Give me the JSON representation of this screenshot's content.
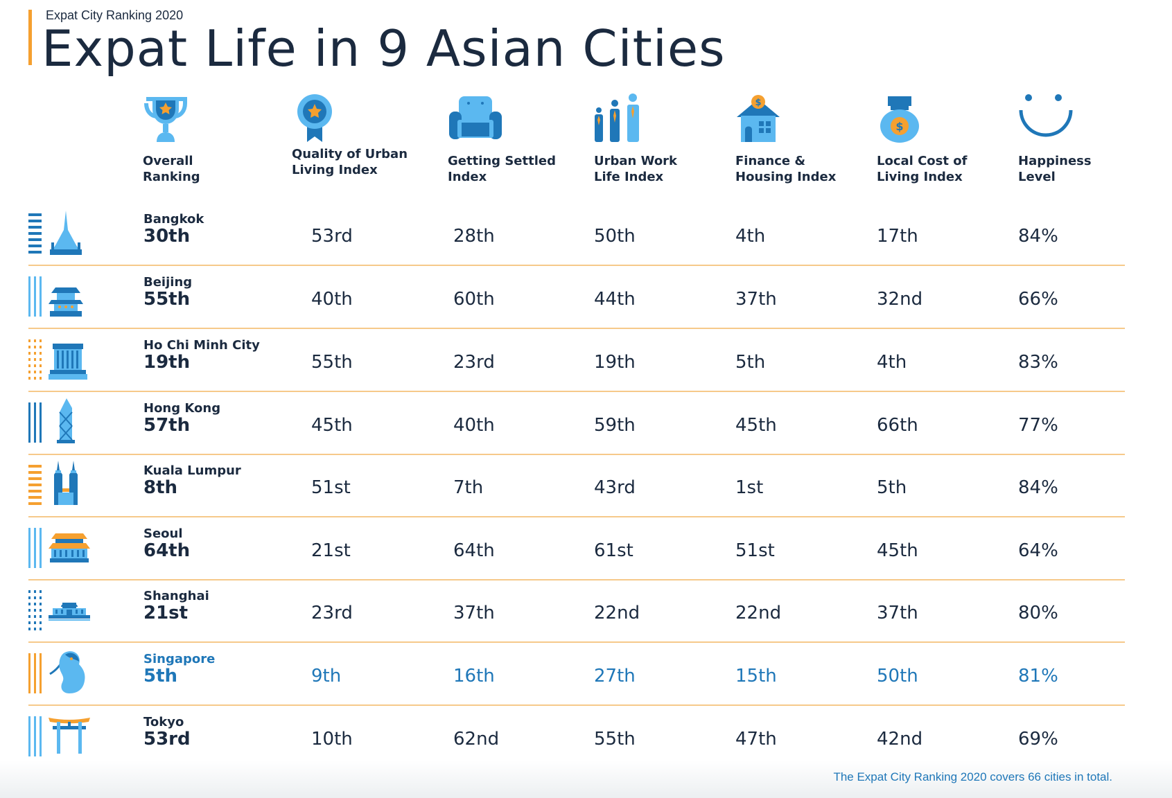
{
  "header": {
    "subtitle": "Expat City Ranking 2020",
    "title": "Expat Life in 9 Asian Cities"
  },
  "columns": [
    {
      "label": "Overall\nRanking",
      "icon": "trophy-icon"
    },
    {
      "label": "Quality of Urban\nLiving Index",
      "icon": "award-badge-icon"
    },
    {
      "label": "Getting Settled\nIndex",
      "icon": "armchair-icon"
    },
    {
      "label": "Urban Work\nLife Index",
      "icon": "people-icon"
    },
    {
      "label": "Finance &\nHousing Index",
      "icon": "house-dollar-icon"
    },
    {
      "label": "Local Cost of\nLiving Index",
      "icon": "money-bag-icon"
    },
    {
      "label": "Happiness\nLevel",
      "icon": "smiley-icon"
    }
  ],
  "rows": [
    {
      "city": "Bangkok",
      "overall": "30th",
      "values": [
        "53rd",
        "28th",
        "50th",
        "4th",
        "17th",
        "84%"
      ],
      "icon": "temple-icon",
      "highlight": false
    },
    {
      "city": "Beijing",
      "overall": "55th",
      "values": [
        "40th",
        "60th",
        "44th",
        "37th",
        "32nd",
        "66%"
      ],
      "icon": "pagoda-icon",
      "highlight": false
    },
    {
      "city": "Ho Chi Minh City",
      "overall": "19th",
      "values": [
        "55th",
        "23rd",
        "19th",
        "5th",
        "4th",
        "83%"
      ],
      "icon": "mausoleum-icon",
      "highlight": false
    },
    {
      "city": "Hong Kong",
      "overall": "57th",
      "values": [
        "45th",
        "40th",
        "59th",
        "45th",
        "66th",
        "77%"
      ],
      "icon": "skyscraper-icon",
      "highlight": false
    },
    {
      "city": "Kuala Lumpur",
      "overall": "8th",
      "values": [
        "51st",
        "7th",
        "43rd",
        "1st",
        "5th",
        "84%"
      ],
      "icon": "twin-towers-icon",
      "highlight": false
    },
    {
      "city": "Seoul",
      "overall": "64th",
      "values": [
        "21st",
        "64th",
        "61st",
        "51st",
        "45th",
        "64%"
      ],
      "icon": "palace-gate-icon",
      "highlight": false
    },
    {
      "city": "Shanghai",
      "overall": "21st",
      "values": [
        "23rd",
        "37th",
        "22nd",
        "22nd",
        "37th",
        "80%"
      ],
      "icon": "museum-icon",
      "highlight": false
    },
    {
      "city": "Singapore",
      "overall": "5th",
      "values": [
        "9th",
        "16th",
        "27th",
        "15th",
        "50th",
        "81%"
      ],
      "icon": "merlion-icon",
      "highlight": true
    },
    {
      "city": "Tokyo",
      "overall": "53rd",
      "values": [
        "10th",
        "62nd",
        "55th",
        "47th",
        "42nd",
        "69%"
      ],
      "icon": "torii-gate-icon",
      "highlight": false
    }
  ],
  "footer": {
    "note": "The Expat City Ranking 2020 covers 66 cities in total."
  },
  "colors": {
    "accent": "#f5a030",
    "primary_text": "#1b2a3f",
    "highlight": "#1f77b8",
    "icon_light": "#5bb8f0",
    "icon_dark": "#1f77b8",
    "divider": "#f6c98a"
  }
}
